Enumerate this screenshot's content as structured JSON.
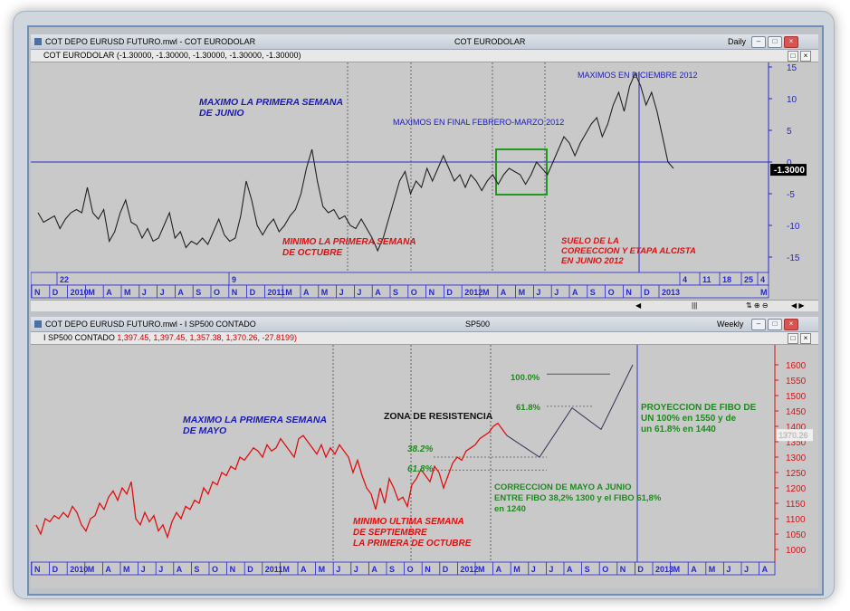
{
  "top": {
    "window_title": "COT DEPO EURUSD FUTURO.mwl - COT EURODOLAR",
    "center_title": "COT EURODOLAR",
    "period": "Daily",
    "indicator_label": "COT EURODOLAR (-1.30000, -1.30000, -1.30000, -1.30000, -1.30000)",
    "price_tag": "-1.3000",
    "y_ticks": [
      "15",
      "10",
      "5",
      "0",
      "-5",
      "-10",
      "-15"
    ],
    "x_month_labels": [
      "N",
      "D",
      "2010",
      "M",
      "A",
      "M",
      "J",
      "J",
      "A",
      "S",
      "O",
      "N",
      "D",
      "2011",
      "M",
      "A",
      "M",
      "J",
      "J",
      "A",
      "S",
      "O",
      "N",
      "D",
      "2012",
      "M",
      "A",
      "M",
      "J",
      "J",
      "A",
      "S",
      "O",
      "N",
      "D",
      "2013"
    ],
    "x_top_labels": [
      "22",
      "9",
      "4",
      "11",
      "18",
      "25",
      "4"
    ],
    "x_right_labels": [
      "M"
    ],
    "annotations": {
      "max_junio": [
        "MAXIMO LA PRIMERA SEMANA",
        "DE JUNIO"
      ],
      "maximos_final": "MAXIMOS EN FINAL FEBRERO-MARZO 2012",
      "maximos_dic": "MAXIMOS EN DICIEMBRE 2012",
      "minimo_octubre": [
        "MINIMO LA PRIMERA SEMANA",
        "DE OCTUBRE"
      ],
      "suelo": [
        "SUELO DE LA",
        "COREECCION Y ETAPA ALCISTA",
        "EN JUNIO 2012"
      ]
    },
    "scroll_label": "|||"
  },
  "bottom": {
    "window_title": "COT DEPO EURUSD FUTURO.mwl - I SP500 CONTADO",
    "center_title": "SP500",
    "period": "Weekly",
    "indicator_label": "I SP500 CONTADO",
    "indicator_values": "1,397.45, 1,397.45, 1,357.38, 1,370.26, -27.8199)",
    "price_tag": "1370.26",
    "y_ticks": [
      "1600",
      "1550",
      "1500",
      "1450",
      "1400",
      "1350",
      "1300",
      "1250",
      "1200",
      "1150",
      "1100",
      "1050",
      "1000"
    ],
    "x_month_labels": [
      "N",
      "D",
      "2010",
      "M",
      "A",
      "M",
      "J",
      "J",
      "A",
      "S",
      "O",
      "N",
      "D",
      "2011",
      "M",
      "A",
      "M",
      "J",
      "J",
      "A",
      "S",
      "O",
      "N",
      "D",
      "2012",
      "M",
      "A",
      "M",
      "J",
      "J",
      "A",
      "S",
      "O",
      "N",
      "D",
      "2013",
      "M",
      "A",
      "M",
      "J",
      "J",
      "A"
    ],
    "annotations": {
      "max_mayo": [
        "MAXIMO LA PRIMERA SEMANA",
        "DE MAYO"
      ],
      "zona": "ZONA DE RESISTENCIA",
      "fib100": "100.0%",
      "fib618": "61.8%",
      "fib382b": "38.2%",
      "fib618b": "61.8%",
      "proyeccion": [
        "PROYECCION DE FIBO DE",
        "UN 100% en 1550 y de",
        "un 61.8% en 1440"
      ],
      "correccion": [
        "CORRECCION DE MAYO A JUNIO",
        "ENTRE FIBO 38,2% 1300 y el FIBO 61,8%",
        "en 1240"
      ],
      "minimo_sept": [
        "MINIMO ULTIMA SEMANA",
        "DE SEPTIEMBRE",
        "LA PRIMERA DE OCTUBRE"
      ]
    }
  },
  "colors": {
    "blue_text": "#1a1ab8",
    "red_text": "#e01010",
    "green_text": "#1f8a1f",
    "line_black": "#222222",
    "line_red": "#e01010",
    "axis_blue": "#2626d0"
  }
}
